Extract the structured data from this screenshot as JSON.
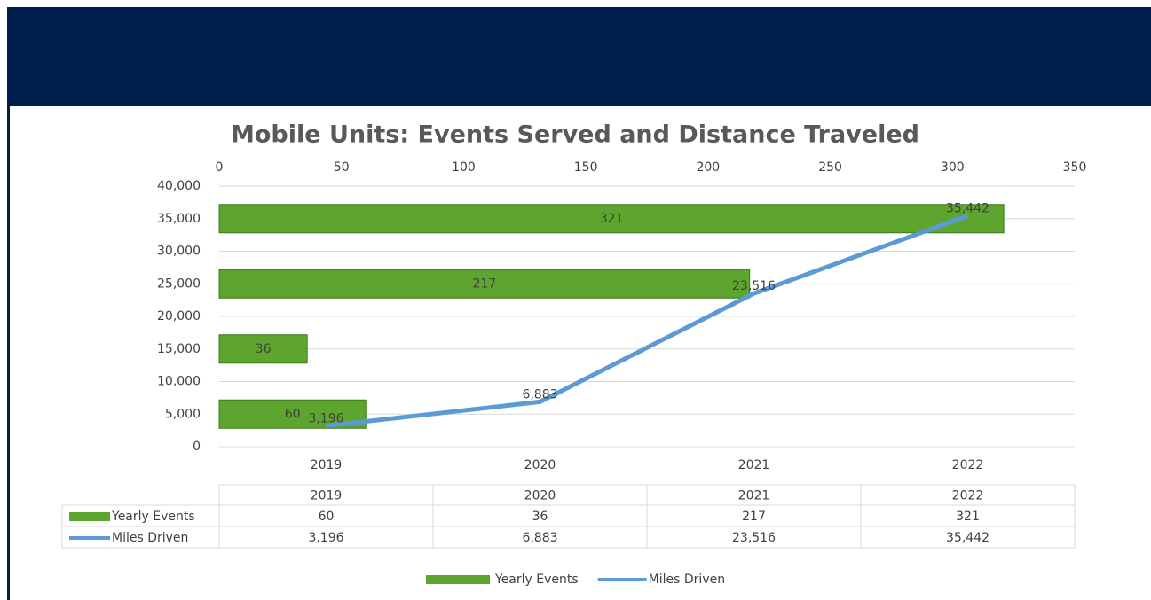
{
  "chart_data": {
    "type": "combo",
    "title": "Mobile Units: Events Served and Distance Traveled",
    "categories": [
      "2019",
      "2020",
      "2021",
      "2022"
    ],
    "series": [
      {
        "name": "Yearly Events",
        "type": "bar",
        "color": "#5ea52f",
        "values": [
          60,
          36,
          217,
          321
        ]
      },
      {
        "name": "Miles Driven",
        "type": "line",
        "color": "#5b9bd5",
        "values": [
          3196,
          6883,
          23516,
          35442
        ],
        "value_labels": [
          "3,196",
          "6,883",
          "23,516",
          "35,442"
        ]
      }
    ],
    "xlim": [
      0,
      350
    ],
    "xticks": [
      0,
      50,
      100,
      150,
      200,
      250,
      300,
      350
    ],
    "ylim": [
      0,
      40000
    ],
    "yticks": [
      0,
      {
        "value": 5000,
        "label": "5,000"
      },
      {
        "value": 10000,
        "label": "10,000"
      },
      {
        "value": 15000,
        "label": "15,000"
      },
      {
        "value": 20000,
        "label": "20,000"
      },
      {
        "value": 25000,
        "label": "25,000"
      },
      {
        "value": 30000,
        "label": "30,000"
      },
      {
        "value": 35000,
        "label": "35,000"
      },
      {
        "value": 40000,
        "label": "40,000"
      }
    ],
    "grid": true,
    "legend": "bottom",
    "data_table": true
  }
}
